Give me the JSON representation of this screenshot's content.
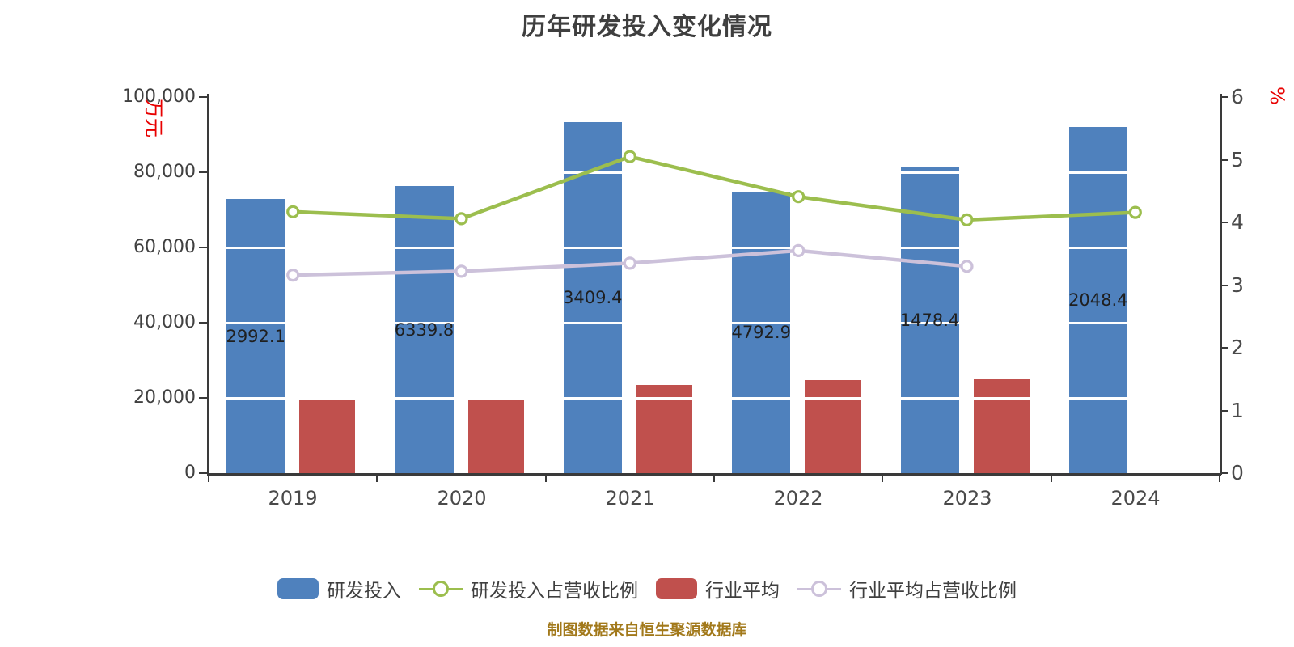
{
  "title": "历年研发投入变化情况",
  "source_note": "制图数据来自恒生聚源数据库",
  "chart_data": {
    "type": "bar+line combo, dual y-axis",
    "title": "历年研发投入变化情况",
    "categories": [
      "2019",
      "2020",
      "2021",
      "2022",
      "2023",
      "2024"
    ],
    "left_axis": {
      "name": "万元",
      "name_color": "#e80000",
      "min": 0,
      "max": 100000,
      "tick_labels": [
        "100,000",
        "80,000",
        "60,000",
        "40,000",
        "20,000",
        "0"
      ],
      "tick_values": [
        100000,
        80000,
        60000,
        40000,
        20000,
        0
      ]
    },
    "right_axis": {
      "name": "%",
      "name_color": "#e80000",
      "min": 0,
      "max": 6,
      "tick_labels": [
        "6",
        "5",
        "4",
        "3",
        "2",
        "1",
        "0"
      ],
      "tick_values": [
        6,
        5,
        4,
        3,
        2,
        1,
        0
      ]
    },
    "grid": "horizontal white gridlines at 20,000 intervals, drawn over bars",
    "legend_position": "bottom center",
    "series": [
      {
        "name": "研发投入",
        "type": "bar",
        "axis": "left",
        "color": "#4f81bd",
        "values": [
          72992.1,
          76339.8,
          93409.4,
          74792.9,
          81478.4,
          92048.4
        ],
        "visible_bar_labels": [
          "2992.1",
          "6339.8",
          "3409.4",
          "4792.9",
          "1478.4",
          "2048.4"
        ],
        "label_note": "value labels centered inside bars, clipped to bar width"
      },
      {
        "name": "研发投入占营收比例",
        "type": "line",
        "axis": "right",
        "color": "#9cbe4e",
        "marker": "white-filled circle with green ring",
        "values": [
          4.17,
          4.06,
          5.05,
          4.41,
          4.04,
          4.16
        ]
      },
      {
        "name": "行业平均",
        "type": "bar",
        "axis": "left",
        "color": "#c0504d",
        "values": [
          19600,
          19800,
          23400,
          24800,
          25000,
          null
        ]
      },
      {
        "name": "行业平均占营收比例",
        "type": "line",
        "axis": "right",
        "color": "#ccc1da",
        "marker": "white-filled circle with lavender ring",
        "values": [
          3.16,
          3.22,
          3.35,
          3.55,
          3.3,
          null
        ]
      }
    ]
  }
}
